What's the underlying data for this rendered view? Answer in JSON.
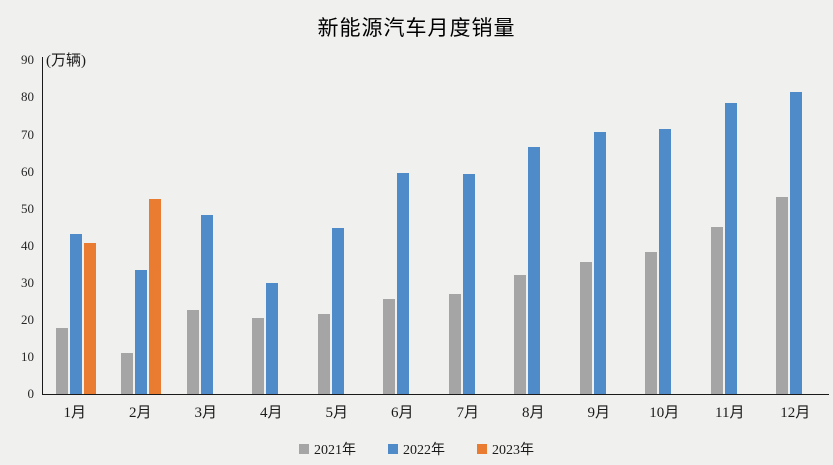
{
  "chart_data": {
    "type": "bar",
    "title": "新能源汽车月度销量",
    "ylabel": "(万辆)",
    "xlabel": "",
    "categories": [
      "1月",
      "2月",
      "3月",
      "4月",
      "5月",
      "6月",
      "7月",
      "8月",
      "9月",
      "10月",
      "11月",
      "12月"
    ],
    "series": [
      {
        "name": "2021年",
        "color": "#a5a5a5",
        "values": [
          17.9,
          11.0,
          22.6,
          20.6,
          21.7,
          25.6,
          27.1,
          32.1,
          35.7,
          38.3,
          45.0,
          53.1
        ]
      },
      {
        "name": "2022年",
        "color": "#4f8bc9",
        "values": [
          43.1,
          33.4,
          48.4,
          29.9,
          44.7,
          59.6,
          59.3,
          66.6,
          70.8,
          71.4,
          78.6,
          81.4
        ]
      },
      {
        "name": "2023年",
        "color": "#e97c30",
        "values": [
          40.8,
          52.5,
          null,
          null,
          null,
          null,
          null,
          null,
          null,
          null,
          null,
          null
        ]
      }
    ],
    "ylim": [
      0,
      90
    ],
    "yticks": [
      0,
      10,
      20,
      30,
      40,
      50,
      60,
      70,
      80,
      90
    ],
    "grid": false,
    "legend_position": "bottom",
    "background_color": "#f0f0ef",
    "axis_color": "#1a1a1a"
  }
}
